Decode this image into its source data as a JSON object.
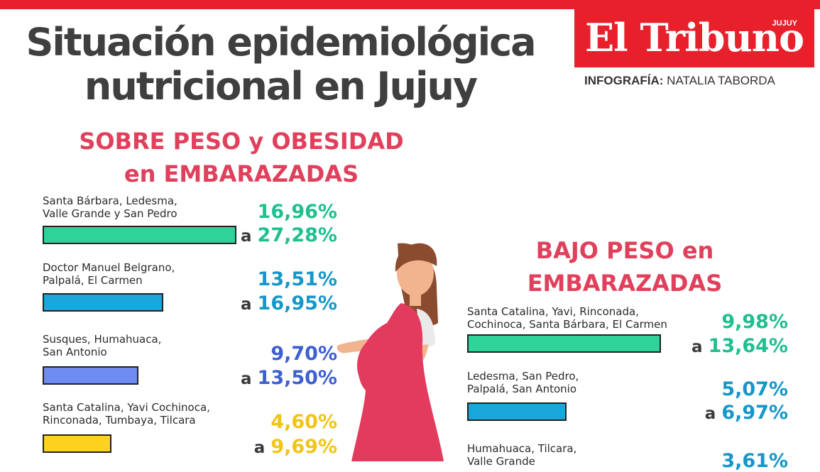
{
  "header": {
    "title_line1": "Situación epidemiológica",
    "title_line2": "nutricional en Jujuy",
    "logo_text": "El Tribuno",
    "logo_sub": "JUJUY",
    "credit_label": "INFOGRAFÍA:",
    "credit_name": "NATALIA TABORDA"
  },
  "colors": {
    "accent": "#e8202b",
    "section_title": "#e0405b",
    "green": "#2ed39a",
    "blue": "#19a6da",
    "lavender": "#6f8cf0",
    "yellow": "#ffd21f"
  },
  "chart_data": [
    {
      "type": "bar",
      "title_line1": "SOBRE PESO y OBESIDAD",
      "title_line2": "en EMBARAZADAS",
      "connector": "a",
      "categories": [
        [
          "Santa Bárbara, Ledesma,",
          "Valle Grande y San Pedro"
        ],
        [
          "Doctor Manuel Belgrano,",
          "Palpalá, El Carmen"
        ],
        [
          "Susques, Humahuaca,",
          "San Antonio"
        ],
        [
          "Santa Catalina, Yavi Cochinoca,",
          "Rinconada, Tumbaya, Tilcara"
        ]
      ],
      "ranges": [
        {
          "low": "16,96%",
          "high": "27,28%",
          "value": 27.28,
          "color": "#2ed39a",
          "text_color": "#1fbf8f"
        },
        {
          "low": "13,51%",
          "high": "16,95%",
          "value": 16.95,
          "color": "#19a6da",
          "text_color": "#1597c9"
        },
        {
          "low": "9,70%",
          "high": "13,50%",
          "value": 13.5,
          "color": "#6f8cf0",
          "text_color": "#3d5fd0"
        },
        {
          "low": "4,60%",
          "high": "9,69%",
          "value": 9.69,
          "color": "#ffd21f",
          "text_color": "#f2c416"
        }
      ]
    },
    {
      "type": "bar",
      "title_line1": "BAJO PESO en",
      "title_line2": "EMBARAZADAS",
      "connector": "a",
      "categories": [
        [
          "Santa Catalina, Yavi, Rinconada,",
          "Cochinoca, Santa Bárbara, El Carmen"
        ],
        [
          "Ledesma, San Pedro,",
          "Palpalá, San Antonio"
        ],
        [
          "Humahuaca, Tilcara,",
          "Valle Grande"
        ]
      ],
      "ranges": [
        {
          "low": "9,98%",
          "high": "13,64%",
          "value": 13.64,
          "color": "#2ed39a",
          "text_color": "#1fbf8f"
        },
        {
          "low": "5,07%",
          "high": "6,97%",
          "value": 6.97,
          "color": "#19a6da",
          "text_color": "#1597c9"
        },
        {
          "low": "3,61%",
          "high": "",
          "value": null,
          "color": "#6f8cf0",
          "text_color": "#1597c9"
        }
      ]
    }
  ]
}
